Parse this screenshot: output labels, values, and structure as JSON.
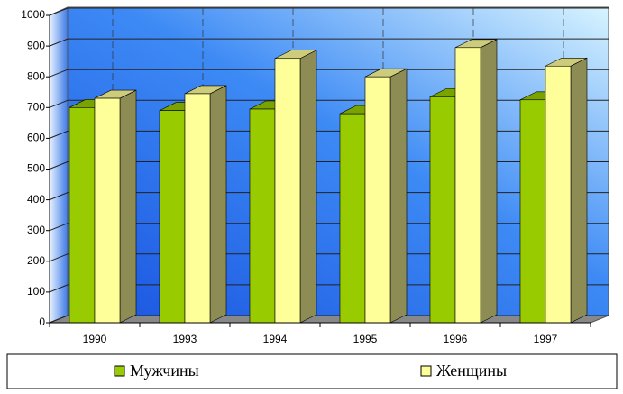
{
  "chart_data": {
    "type": "bar",
    "categories": [
      "1990",
      "1993",
      "1994",
      "1995",
      "1996",
      "1997"
    ],
    "series": [
      {
        "name": "Мужчины",
        "color": "#99cc00",
        "values": [
          700,
          690,
          695,
          680,
          735,
          725
        ]
      },
      {
        "name": "Женщины",
        "color": "#ffff99",
        "values": [
          730,
          745,
          860,
          800,
          895,
          835
        ]
      }
    ],
    "ylim": [
      0,
      1000
    ],
    "yticks": [
      0,
      100,
      200,
      300,
      400,
      500,
      600,
      700,
      800,
      900,
      1000
    ],
    "grid": true,
    "legend": "bottom"
  }
}
